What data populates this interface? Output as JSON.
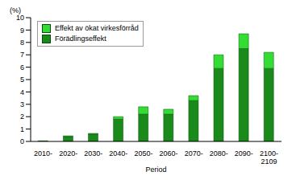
{
  "chart_data": {
    "type": "bar",
    "stacked": true,
    "y_label": "(%)",
    "x_label": "Period",
    "categories": [
      "2010-",
      "2020-",
      "2030-",
      "2040-",
      "2050-",
      "2060-",
      "2070-",
      "2080-",
      "2090-",
      "2100-\n2109"
    ],
    "series": [
      {
        "name": "Förädlingseffekt",
        "color": "#1a8a1a",
        "values": [
          0.05,
          0.4,
          0.6,
          1.8,
          2.2,
          2.2,
          3.3,
          5.9,
          7.5,
          5.9
        ]
      },
      {
        "name": "Effekt av ökat virkesförråd",
        "color": "#33dd33",
        "values": [
          0,
          0.05,
          0.05,
          0.2,
          0.6,
          0.4,
          0.4,
          1.1,
          1.2,
          1.3
        ]
      }
    ],
    "ylim": [
      0,
      10
    ],
    "yticks": [
      0,
      1,
      2,
      3,
      4,
      5,
      6,
      7,
      8,
      9,
      10
    ],
    "grid": false,
    "legend": "upper left"
  }
}
